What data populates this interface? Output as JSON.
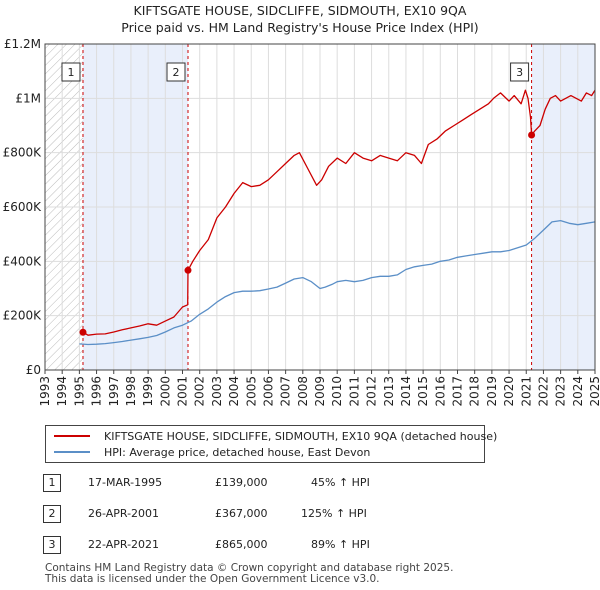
{
  "title": "KIFTSGATE HOUSE, SIDCLIFFE, SIDMOUTH, EX10 9QA",
  "subtitle": "Price paid vs. HM Land Registry's House Price Index (HPI)",
  "colors": {
    "property": "#cc0000",
    "hpi": "#5b8fc7",
    "shade": "#e9effb",
    "grid": "#dddddd",
    "hatch": "#bbbbbb",
    "vline": "#cc0000"
  },
  "chart_data": {
    "type": "line",
    "xlabel": "",
    "ylabel": "",
    "xlim": [
      1993,
      2025
    ],
    "ylim": [
      0,
      1200000
    ],
    "yticks": [
      {
        "value": 0,
        "label": "£0"
      },
      {
        "value": 200000,
        "label": "£200K"
      },
      {
        "value": 400000,
        "label": "£400K"
      },
      {
        "value": 600000,
        "label": "£600K"
      },
      {
        "value": 800000,
        "label": "£800K"
      },
      {
        "value": 1000000,
        "label": "£1M"
      },
      {
        "value": 1200000,
        "label": "£1.2M"
      }
    ],
    "xticks": [
      "1993",
      "1994",
      "1995",
      "1996",
      "1997",
      "1998",
      "1999",
      "2000",
      "2001",
      "2002",
      "2003",
      "2004",
      "2005",
      "2006",
      "2007",
      "2008",
      "2009",
      "2010",
      "2011",
      "2012",
      "2013",
      "2014",
      "2015",
      "2016",
      "2017",
      "2018",
      "2019",
      "2020",
      "2021",
      "2022",
      "2023",
      "2024",
      "2025"
    ],
    "hatch_until": 1995.21,
    "shaded_spans": [
      [
        1995.21,
        2001.32
      ],
      [
        2021.31,
        2025.0
      ]
    ],
    "series": [
      {
        "name": "KIFTSGATE HOUSE, SIDCLIFFE, SIDMOUTH, EX10 9QA (detached house)",
        "color": "#cc0000",
        "x": [
          1995.21,
          1995.5,
          1996,
          1996.5,
          1997,
          1997.5,
          1998,
          1998.5,
          1999,
          1999.5,
          2000,
          2000.5,
          2001.0,
          2001.3,
          2001.32,
          2001.6,
          2002.0,
          2002.5,
          2003.0,
          2003.5,
          2004.0,
          2004.5,
          2005.0,
          2005.5,
          2006.0,
          2006.5,
          2007.0,
          2007.5,
          2007.8,
          2008.3,
          2008.8,
          2009.1,
          2009.5,
          2010.0,
          2010.5,
          2011.0,
          2011.5,
          2012.0,
          2012.5,
          2013.0,
          2013.5,
          2014.0,
          2014.5,
          2014.9,
          2015.3,
          2015.8,
          2016.3,
          2016.8,
          2017.3,
          2017.8,
          2018.3,
          2018.8,
          2019.1,
          2019.5,
          2020.0,
          2020.3,
          2020.7,
          2020.95,
          2021.1,
          2021.25,
          2021.31,
          2021.5,
          2021.8,
          2022.1,
          2022.4,
          2022.7,
          2023.0,
          2023.3,
          2023.6,
          2023.9,
          2024.2,
          2024.5,
          2024.8,
          2025.0
        ],
        "values": [
          139000,
          128000,
          132000,
          133000,
          140000,
          148000,
          155000,
          162000,
          170000,
          165000,
          180000,
          195000,
          232000,
          240000,
          367000,
          400000,
          440000,
          480000,
          560000,
          600000,
          650000,
          690000,
          675000,
          680000,
          700000,
          730000,
          760000,
          790000,
          800000,
          740000,
          680000,
          700000,
          750000,
          780000,
          760000,
          800000,
          780000,
          770000,
          790000,
          780000,
          770000,
          800000,
          790000,
          760000,
          830000,
          850000,
          880000,
          900000,
          920000,
          940000,
          960000,
          980000,
          1000000,
          1020000,
          990000,
          1010000,
          980000,
          1030000,
          1000000,
          930000,
          865000,
          880000,
          900000,
          960000,
          1000000,
          1010000,
          990000,
          1000000,
          1010000,
          1000000,
          990000,
          1020000,
          1010000,
          1030000
        ]
      },
      {
        "name": "HPI: Average price, detached house, East Devon",
        "color": "#5b8fc7",
        "x": [
          1995.0,
          1995.5,
          1996,
          1996.5,
          1997,
          1997.5,
          1998,
          1998.5,
          1999,
          1999.5,
          2000,
          2000.5,
          2001,
          2001.5,
          2002,
          2002.5,
          2003,
          2003.5,
          2004,
          2004.5,
          2005,
          2005.5,
          2006,
          2006.5,
          2007,
          2007.5,
          2008,
          2008.5,
          2009,
          2009.3,
          2009.7,
          2010,
          2010.5,
          2011,
          2011.5,
          2012,
          2012.5,
          2013,
          2013.5,
          2014,
          2014.5,
          2015,
          2015.5,
          2016,
          2016.5,
          2017,
          2017.5,
          2018,
          2018.5,
          2019,
          2019.5,
          2020,
          2020.5,
          2021,
          2021.5,
          2022,
          2022.5,
          2023,
          2023.5,
          2024,
          2024.5,
          2025
        ],
        "values": [
          96000,
          94000,
          95000,
          97000,
          101000,
          105000,
          110000,
          115000,
          120000,
          127000,
          140000,
          155000,
          165000,
          180000,
          205000,
          225000,
          250000,
          270000,
          285000,
          290000,
          290000,
          292000,
          298000,
          305000,
          320000,
          335000,
          340000,
          325000,
          300000,
          305000,
          315000,
          325000,
          330000,
          325000,
          330000,
          340000,
          345000,
          345000,
          350000,
          370000,
          380000,
          385000,
          390000,
          400000,
          405000,
          415000,
          420000,
          425000,
          430000,
          435000,
          435000,
          440000,
          450000,
          460000,
          485000,
          515000,
          545000,
          550000,
          540000,
          535000,
          540000,
          545000
        ]
      }
    ],
    "markers": [
      {
        "label": "1",
        "x": 1995.21,
        "value": 139000
      },
      {
        "label": "2",
        "x": 2001.32,
        "value": 367000
      },
      {
        "label": "3",
        "x": 2021.31,
        "value": 865000
      }
    ]
  },
  "legend": {
    "items": [
      {
        "label": "KIFTSGATE HOUSE, SIDCLIFFE, SIDMOUTH, EX10 9QA (detached house)",
        "color": "#cc0000"
      },
      {
        "label": "HPI: Average price, detached house, East Devon",
        "color": "#5b8fc7"
      }
    ]
  },
  "transactions": [
    {
      "num": "1",
      "date": "17-MAR-1995",
      "price": "£139,000",
      "hpi": "45% ↑ HPI"
    },
    {
      "num": "2",
      "date": "26-APR-2001",
      "price": "£367,000",
      "hpi": "125% ↑ HPI"
    },
    {
      "num": "3",
      "date": "22-APR-2021",
      "price": "£865,000",
      "hpi": "89% ↑ HPI"
    }
  ],
  "footer": {
    "line1": "Contains HM Land Registry data © Crown copyright and database right 2025.",
    "line2": "This data is licensed under the Open Government Licence v3.0."
  }
}
